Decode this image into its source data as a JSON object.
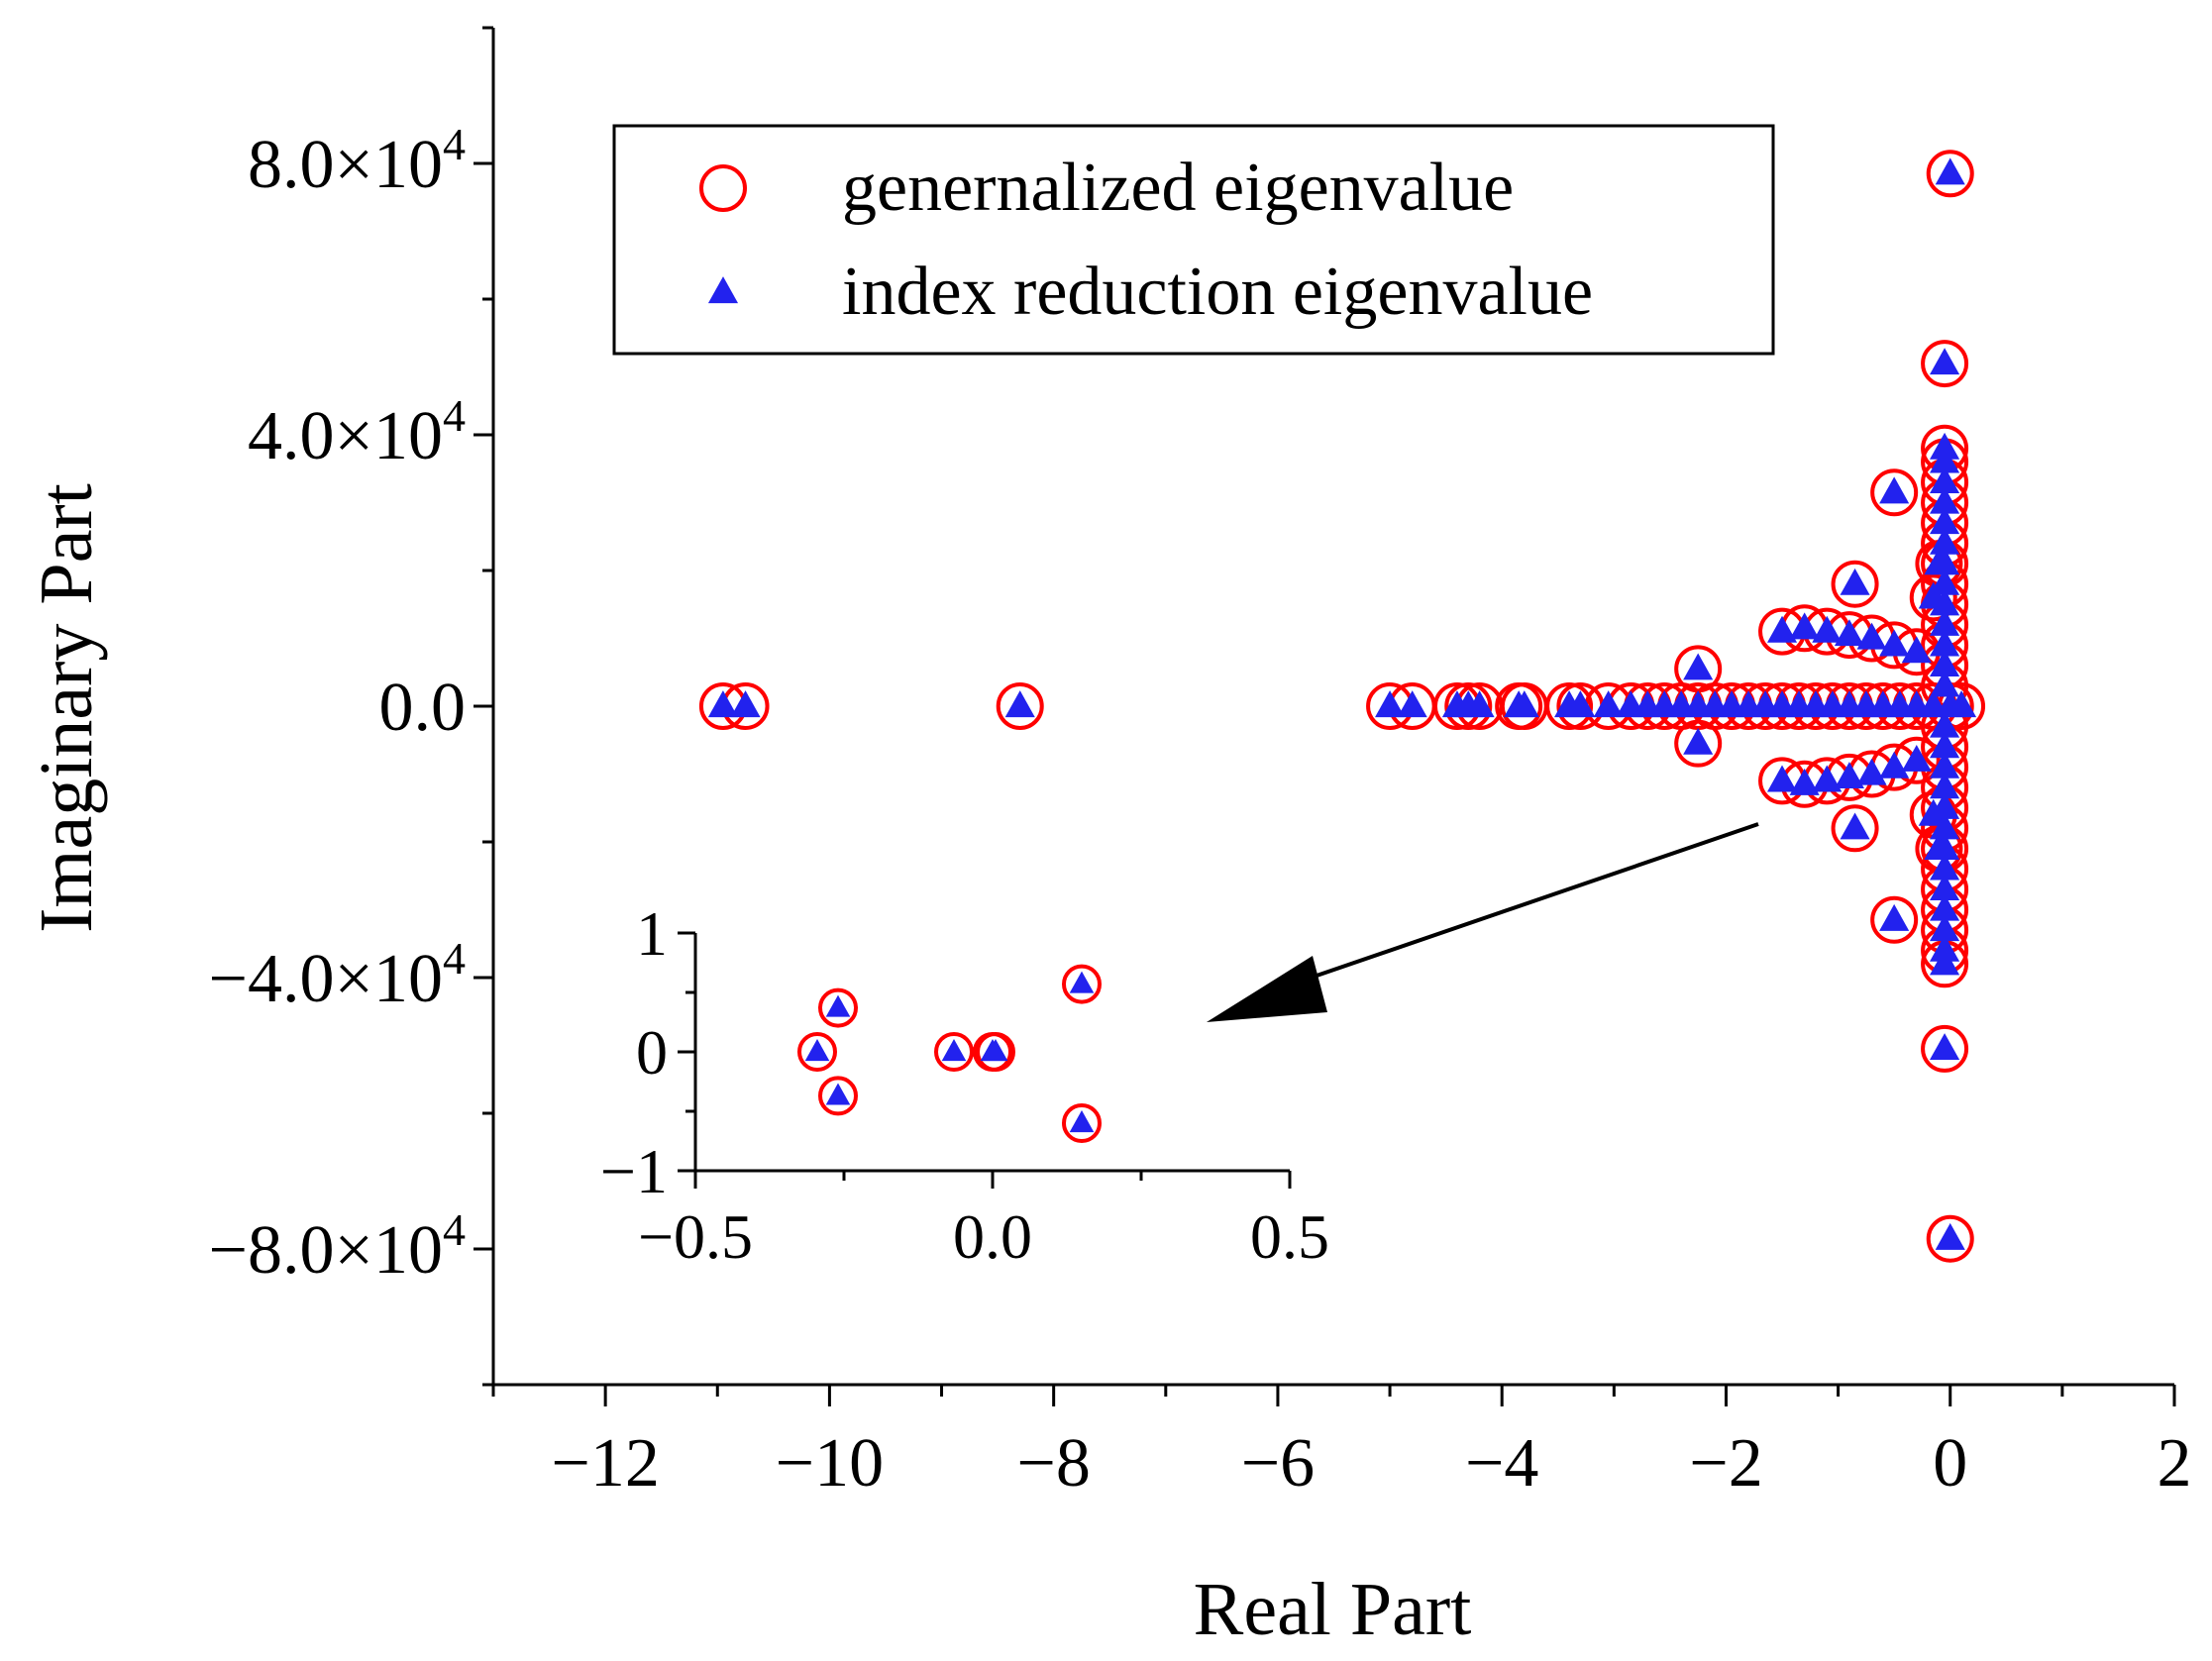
{
  "chart_data": [
    {
      "type": "scatter",
      "xlabel": "Real Part",
      "ylabel": "Imaginary Part",
      "xlim": [
        -13,
        2
      ],
      "ylim": [
        -100000,
        100000
      ],
      "x_ticks": [
        -12,
        -10,
        -8,
        -6,
        -4,
        -2,
        0,
        2
      ],
      "x_tick_labels": [
        "−12",
        "−10",
        "−8",
        "−6",
        "−4",
        "−2",
        "0",
        "2"
      ],
      "y_ticks": [
        -80000,
        -40000,
        0,
        40000,
        80000
      ],
      "y_tick_labels": [
        {
          "mantissa": "−8.0×10",
          "exp": "4"
        },
        {
          "mantissa": "−4.0×10",
          "exp": "4"
        },
        {
          "mantissa": "0.0",
          "exp": ""
        },
        {
          "mantissa": "4.0×10",
          "exp": "4"
        },
        {
          "mantissa": "8.0×10",
          "exp": "4"
        }
      ],
      "legend": "top-center",
      "grid": false,
      "series": [
        {
          "name": "genernalized eigenvalue",
          "marker": "open-circle",
          "color": "#ff0000",
          "points": [
            [
              -10.95,
              0
            ],
            [
              -10.75,
              0
            ],
            [
              -8.3,
              0
            ],
            [
              -5.0,
              0
            ],
            [
              -4.8,
              0
            ],
            [
              -4.4,
              0
            ],
            [
              -4.3,
              0
            ],
            [
              -4.2,
              0
            ],
            [
              -3.85,
              0
            ],
            [
              -3.8,
              0
            ],
            [
              -3.4,
              0
            ],
            [
              -3.3,
              0
            ],
            [
              -3.05,
              0
            ],
            [
              -2.85,
              0
            ],
            [
              -2.7,
              0
            ],
            [
              -2.55,
              0
            ],
            [
              -2.4,
              0
            ],
            [
              -2.25,
              0
            ],
            [
              -2.1,
              0
            ],
            [
              -1.95,
              0
            ],
            [
              -1.8,
              0
            ],
            [
              -1.65,
              0
            ],
            [
              -1.5,
              0
            ],
            [
              -1.35,
              0
            ],
            [
              -1.2,
              0
            ],
            [
              -1.05,
              0
            ],
            [
              -0.9,
              0
            ],
            [
              -0.75,
              0
            ],
            [
              -0.6,
              0
            ],
            [
              -0.45,
              0
            ],
            [
              -0.3,
              0
            ],
            [
              -0.15,
              0
            ],
            [
              0,
              0
            ],
            [
              0.1,
              0
            ],
            [
              -2.25,
              5500
            ],
            [
              -2.25,
              -5500
            ],
            [
              -1.5,
              11000
            ],
            [
              -1.3,
              11500
            ],
            [
              -1.1,
              11000
            ],
            [
              -0.9,
              10500
            ],
            [
              -0.7,
              10000
            ],
            [
              -0.5,
              9000
            ],
            [
              -0.3,
              8000
            ],
            [
              -1.5,
              -11000
            ],
            [
              -1.3,
              -11500
            ],
            [
              -1.1,
              -11000
            ],
            [
              -0.9,
              -10500
            ],
            [
              -0.7,
              -10000
            ],
            [
              -0.5,
              -9000
            ],
            [
              -0.3,
              -8000
            ],
            [
              -0.85,
              18000
            ],
            [
              -0.85,
              -18000
            ],
            [
              -0.5,
              31500
            ],
            [
              -0.5,
              -31500
            ],
            [
              -0.15,
              16000
            ],
            [
              -0.15,
              -16000
            ],
            [
              -0.1,
              21000
            ],
            [
              -0.1,
              -21000
            ],
            [
              -0.05,
              3000
            ],
            [
              -0.05,
              6000
            ],
            [
              -0.05,
              9000
            ],
            [
              -0.05,
              12000
            ],
            [
              -0.05,
              15000
            ],
            [
              -0.05,
              18000
            ],
            [
              -0.05,
              21000
            ],
            [
              -0.05,
              24000
            ],
            [
              -0.05,
              27000
            ],
            [
              -0.05,
              30000
            ],
            [
              -0.05,
              33000
            ],
            [
              -0.05,
              36000
            ],
            [
              -0.05,
              38000
            ],
            [
              -0.05,
              -3000
            ],
            [
              -0.05,
              -6000
            ],
            [
              -0.05,
              -9000
            ],
            [
              -0.05,
              -12000
            ],
            [
              -0.05,
              -15000
            ],
            [
              -0.05,
              -18000
            ],
            [
              -0.05,
              -21000
            ],
            [
              -0.05,
              -24000
            ],
            [
              -0.05,
              -27000
            ],
            [
              -0.05,
              -30000
            ],
            [
              -0.05,
              -33000
            ],
            [
              -0.05,
              -36000
            ],
            [
              -0.05,
              -38000
            ],
            [
              -0.05,
              50500
            ],
            [
              -0.05,
              -50500
            ],
            [
              0.0,
              78500
            ],
            [
              0.0,
              -78500
            ]
          ]
        },
        {
          "name": "index reduction eigenvalue",
          "marker": "filled-triangle",
          "color": "#2222ee",
          "points": [
            [
              -10.95,
              0
            ],
            [
              -10.75,
              0
            ],
            [
              -8.3,
              0
            ],
            [
              -5.0,
              0
            ],
            [
              -4.8,
              0
            ],
            [
              -4.4,
              0
            ],
            [
              -4.3,
              0
            ],
            [
              -4.2,
              0
            ],
            [
              -3.85,
              0
            ],
            [
              -3.8,
              0
            ],
            [
              -3.4,
              0
            ],
            [
              -3.3,
              0
            ],
            [
              -3.05,
              0
            ],
            [
              -2.85,
              0
            ],
            [
              -2.7,
              0
            ],
            [
              -2.55,
              0
            ],
            [
              -2.4,
              0
            ],
            [
              -2.25,
              0
            ],
            [
              -2.1,
              0
            ],
            [
              -1.95,
              0
            ],
            [
              -1.8,
              0
            ],
            [
              -1.65,
              0
            ],
            [
              -1.5,
              0
            ],
            [
              -1.35,
              0
            ],
            [
              -1.2,
              0
            ],
            [
              -1.05,
              0
            ],
            [
              -0.9,
              0
            ],
            [
              -0.75,
              0
            ],
            [
              -0.6,
              0
            ],
            [
              -0.45,
              0
            ],
            [
              -0.3,
              0
            ],
            [
              -0.15,
              0
            ],
            [
              0,
              0
            ],
            [
              0.1,
              0
            ],
            [
              -2.25,
              5500
            ],
            [
              -2.25,
              -5500
            ],
            [
              -1.5,
              11000
            ],
            [
              -1.3,
              11500
            ],
            [
              -1.1,
              11000
            ],
            [
              -0.9,
              10500
            ],
            [
              -0.7,
              10000
            ],
            [
              -0.5,
              9000
            ],
            [
              -0.3,
              8000
            ],
            [
              -1.5,
              -11000
            ],
            [
              -1.3,
              -11500
            ],
            [
              -1.1,
              -11000
            ],
            [
              -0.9,
              -10500
            ],
            [
              -0.7,
              -10000
            ],
            [
              -0.5,
              -9000
            ],
            [
              -0.3,
              -8000
            ],
            [
              -0.85,
              18000
            ],
            [
              -0.85,
              -18000
            ],
            [
              -0.5,
              31500
            ],
            [
              -0.5,
              -31500
            ],
            [
              -0.15,
              16000
            ],
            [
              -0.15,
              -16000
            ],
            [
              -0.1,
              21000
            ],
            [
              -0.1,
              -21000
            ],
            [
              -0.05,
              3000
            ],
            [
              -0.05,
              6000
            ],
            [
              -0.05,
              9000
            ],
            [
              -0.05,
              12000
            ],
            [
              -0.05,
              15000
            ],
            [
              -0.05,
              18000
            ],
            [
              -0.05,
              21000
            ],
            [
              -0.05,
              24000
            ],
            [
              -0.05,
              27000
            ],
            [
              -0.05,
              30000
            ],
            [
              -0.05,
              33000
            ],
            [
              -0.05,
              36000
            ],
            [
              -0.05,
              38000
            ],
            [
              -0.05,
              -3000
            ],
            [
              -0.05,
              -6000
            ],
            [
              -0.05,
              -9000
            ],
            [
              -0.05,
              -12000
            ],
            [
              -0.05,
              -15000
            ],
            [
              -0.05,
              -18000
            ],
            [
              -0.05,
              -21000
            ],
            [
              -0.05,
              -24000
            ],
            [
              -0.05,
              -27000
            ],
            [
              -0.05,
              -30000
            ],
            [
              -0.05,
              -33000
            ],
            [
              -0.05,
              -36000
            ],
            [
              -0.05,
              -38000
            ],
            [
              -0.05,
              50500
            ],
            [
              -0.05,
              -50500
            ],
            [
              0.0,
              78500
            ],
            [
              0.0,
              -78500
            ]
          ]
        }
      ],
      "annotations": [
        "arrow from main plot cluster near origin to inset"
      ]
    },
    {
      "type": "scatter",
      "role": "inset",
      "xlim": [
        -0.5,
        0.5
      ],
      "ylim": [
        -1,
        1
      ],
      "x_ticks": [
        -0.5,
        0.0,
        0.5
      ],
      "x_tick_labels": [
        "−0.5",
        "0.0",
        "0.5"
      ],
      "y_ticks": [
        -1,
        0,
        1
      ],
      "y_tick_labels": [
        "−1",
        "0",
        "1"
      ],
      "series": [
        {
          "name": "genernalized eigenvalue",
          "marker": "open-circle",
          "color": "#ff0000",
          "points": [
            [
              -0.295,
              0
            ],
            [
              -0.26,
              0.37
            ],
            [
              -0.26,
              -0.37
            ],
            [
              -0.065,
              0
            ],
            [
              0.0,
              0
            ],
            [
              0.005,
              0
            ],
            [
              0.15,
              0.57
            ],
            [
              0.15,
              -0.6
            ]
          ]
        },
        {
          "name": "index reduction eigenvalue",
          "marker": "filled-triangle",
          "color": "#2222ee",
          "points": [
            [
              -0.295,
              0
            ],
            [
              -0.26,
              0.37
            ],
            [
              -0.26,
              -0.37
            ],
            [
              -0.065,
              0
            ],
            [
              0.0,
              0
            ],
            [
              0.005,
              0
            ],
            [
              0.15,
              0.57
            ],
            [
              0.15,
              -0.6
            ]
          ]
        }
      ]
    }
  ]
}
